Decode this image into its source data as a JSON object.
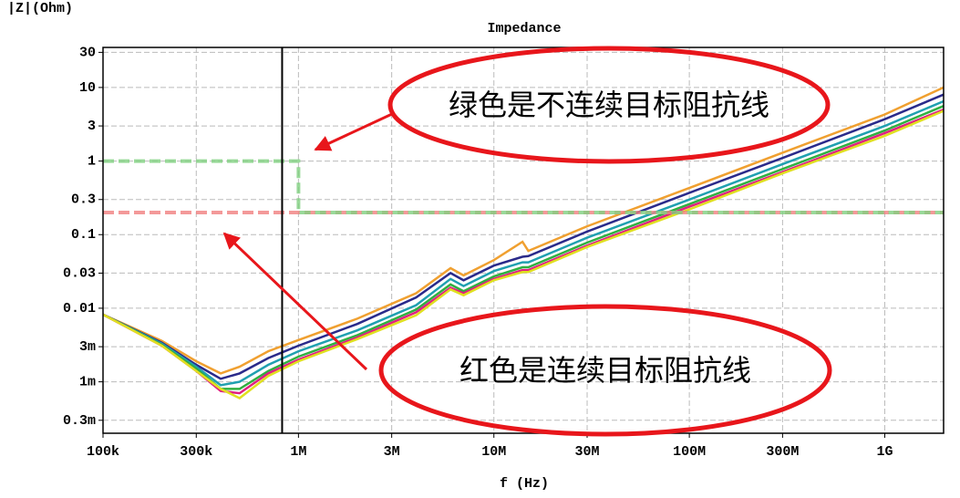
{
  "chart_data": {
    "type": "line",
    "title": "Impedance",
    "y_label": "|Z|(Ohm)",
    "x_label": "f (Hz)",
    "xscale": "log",
    "yscale": "log",
    "grid": true,
    "xlim": [
      100000,
      2000000000
    ],
    "ylim": [
      0.0002,
      35
    ],
    "xticks": [
      {
        "value": 100000,
        "label": "100k"
      },
      {
        "value": 300000,
        "label": "300k"
      },
      {
        "value": 1000000,
        "label": "1M"
      },
      {
        "value": 3000000,
        "label": "3M"
      },
      {
        "value": 10000000,
        "label": "10M"
      },
      {
        "value": 30000000,
        "label": "30M"
      },
      {
        "value": 100000000,
        "label": "100M"
      },
      {
        "value": 300000000,
        "label": "300M"
      },
      {
        "value": 1000000000,
        "label": "1G"
      }
    ],
    "yticks": [
      30,
      10,
      3,
      1,
      0.3,
      0.1,
      0.03,
      0.01,
      {
        "value": 0.003,
        "label": "3m"
      },
      {
        "value": 0.001,
        "label": "1m"
      },
      {
        "value": 0.0003,
        "label": "0.3m"
      }
    ],
    "cursor_x": 825000,
    "series": [
      {
        "color": "#f0a030",
        "x": [
          100000,
          200000,
          300000,
          400000,
          500000,
          700000,
          1000000,
          2000000,
          4000000,
          6000000,
          7000000,
          10000000,
          14000000,
          15000000,
          30000000,
          100000000,
          300000000,
          1000000000,
          2000000000
        ],
        "values": [
          0.0082,
          0.0036,
          0.0019,
          0.0013,
          0.0016,
          0.0026,
          0.0037,
          0.0072,
          0.016,
          0.035,
          0.028,
          0.045,
          0.08,
          0.06,
          0.13,
          0.43,
          1.3,
          4.3,
          10
        ]
      },
      {
        "color": "#2a2a8a",
        "x": [
          100000,
          200000,
          300000,
          400000,
          500000,
          700000,
          1000000,
          2000000,
          4000000,
          6000000,
          7000000,
          10000000,
          14000000,
          15000000,
          30000000,
          100000000,
          300000000,
          1000000000,
          2000000000
        ],
        "values": [
          0.0082,
          0.0034,
          0.0017,
          0.0011,
          0.0013,
          0.0021,
          0.0031,
          0.0061,
          0.014,
          0.03,
          0.024,
          0.038,
          0.05,
          0.051,
          0.11,
          0.37,
          1.1,
          3.7,
          8
        ]
      },
      {
        "color": "#20a0b0",
        "x": [
          100000,
          200000,
          300000,
          400000,
          500000,
          700000,
          1000000,
          2000000,
          4000000,
          6000000,
          7000000,
          10000000,
          14000000,
          15000000,
          30000000,
          100000000,
          300000000,
          1000000000,
          2000000000
        ],
        "values": [
          0.0082,
          0.0033,
          0.0016,
          0.0009,
          0.001,
          0.0017,
          0.0026,
          0.005,
          0.011,
          0.025,
          0.02,
          0.032,
          0.042,
          0.042,
          0.091,
          0.3,
          0.91,
          3,
          6.5
        ]
      },
      {
        "color": "#30b040",
        "x": [
          100000,
          200000,
          300000,
          400000,
          500000,
          700000,
          1000000,
          2000000,
          4000000,
          6000000,
          7000000,
          10000000,
          14000000,
          15000000,
          30000000,
          100000000,
          300000000,
          1000000000,
          2000000000
        ],
        "values": [
          0.0082,
          0.0032,
          0.0015,
          0.0008,
          0.0008,
          0.0014,
          0.0022,
          0.0043,
          0.0096,
          0.021,
          0.017,
          0.027,
          0.036,
          0.036,
          0.078,
          0.26,
          0.78,
          2.6,
          5.6
        ]
      },
      {
        "color": "#e02080",
        "x": [
          100000,
          200000,
          300000,
          400000,
          500000,
          700000,
          1000000,
          2000000,
          4000000,
          6000000,
          7000000,
          10000000,
          14000000,
          15000000,
          30000000,
          100000000,
          300000000,
          1000000000,
          2000000000
        ],
        "values": [
          0.0082,
          0.0031,
          0.0014,
          0.00075,
          0.0007,
          0.0013,
          0.002,
          0.004,
          0.0088,
          0.019,
          0.016,
          0.025,
          0.033,
          0.033,
          0.071,
          0.24,
          0.71,
          2.4,
          5
        ]
      },
      {
        "color": "#e0e020",
        "x": [
          100000,
          200000,
          300000,
          400000,
          500000,
          700000,
          1000000,
          2000000,
          4000000,
          6000000,
          7000000,
          10000000,
          14000000,
          15000000,
          30000000,
          100000000,
          300000000,
          1000000000,
          2000000000
        ],
        "values": [
          0.0082,
          0.0031,
          0.0014,
          0.0008,
          0.0006,
          0.0012,
          0.0019,
          0.0038,
          0.008,
          0.018,
          0.015,
          0.024,
          0.031,
          0.031,
          0.068,
          0.22,
          0.68,
          2.2,
          4.8
        ]
      },
      {
        "color": "#f08080",
        "dashed": true,
        "x": [
          100000,
          2000000000
        ],
        "values": [
          0.2,
          0.2
        ]
      },
      {
        "color": "#80d080",
        "dashed": true,
        "x": [
          100000,
          1000000,
          1000000,
          2000000000
        ],
        "values": [
          1,
          1,
          0.2,
          0.2
        ]
      }
    ],
    "annotations": [
      "绿色是不连续目标阻抗线",
      "红色是连续目标阻抗线"
    ]
  }
}
